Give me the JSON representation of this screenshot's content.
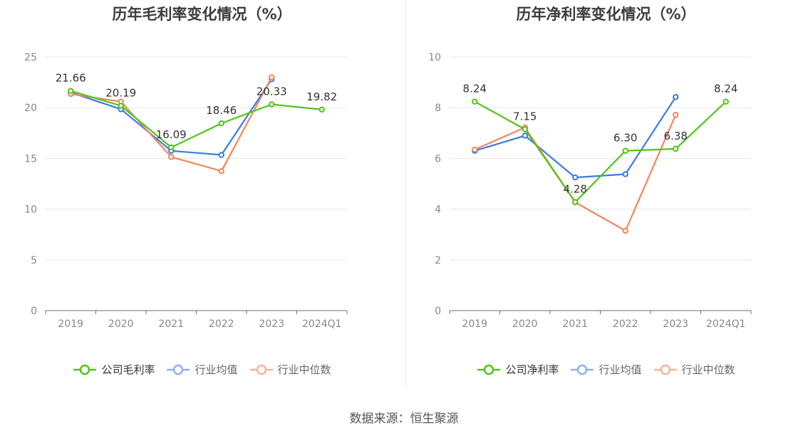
{
  "source_label": "数据来源：恒生聚源",
  "chart_data": [
    {
      "type": "line",
      "title": "历年毛利率变化情况（%）",
      "categories": [
        "2019",
        "2020",
        "2021",
        "2022",
        "2023",
        "2024Q1"
      ],
      "yticks": [
        0,
        5,
        10,
        15,
        20,
        25
      ],
      "ylim": [
        0,
        25
      ],
      "grid": true,
      "legend_position": "bottom",
      "series": [
        {
          "name": "公司毛利率",
          "color": "#52c41a",
          "values": [
            21.66,
            20.19,
            16.09,
            18.46,
            20.33,
            19.82
          ],
          "labels": [
            "21.66",
            "20.19",
            "16.09",
            "18.46",
            "20.33",
            "19.82"
          ]
        },
        {
          "name": "行业均值",
          "color": "#3b7be0",
          "values": [
            21.5,
            19.85,
            15.75,
            15.35,
            22.8,
            null
          ]
        },
        {
          "name": "行业中位数",
          "color": "#f0875e",
          "values": [
            21.35,
            20.6,
            15.15,
            13.75,
            23.0,
            null
          ]
        }
      ]
    },
    {
      "type": "line",
      "title": "历年净利率变化情况（%）",
      "categories": [
        "2019",
        "2020",
        "2021",
        "2022",
        "2023",
        "2024Q1"
      ],
      "yticks": [
        0,
        2,
        4,
        6,
        8,
        10
      ],
      "ylim": [
        0,
        10
      ],
      "grid": true,
      "legend_position": "bottom",
      "series": [
        {
          "name": "公司净利率",
          "color": "#52c41a",
          "values": [
            8.24,
            7.15,
            4.28,
            6.3,
            6.38,
            8.24
          ],
          "labels": [
            "8.24",
            "7.15",
            "4.28",
            "6.30",
            "6.38",
            "8.24"
          ]
        },
        {
          "name": "行业均值",
          "color": "#3b7be0",
          "values": [
            6.3,
            6.9,
            5.25,
            5.38,
            8.42,
            null
          ]
        },
        {
          "name": "行业中位数",
          "color": "#f0875e",
          "values": [
            6.35,
            7.22,
            4.27,
            3.15,
            7.72,
            null
          ]
        }
      ]
    }
  ]
}
